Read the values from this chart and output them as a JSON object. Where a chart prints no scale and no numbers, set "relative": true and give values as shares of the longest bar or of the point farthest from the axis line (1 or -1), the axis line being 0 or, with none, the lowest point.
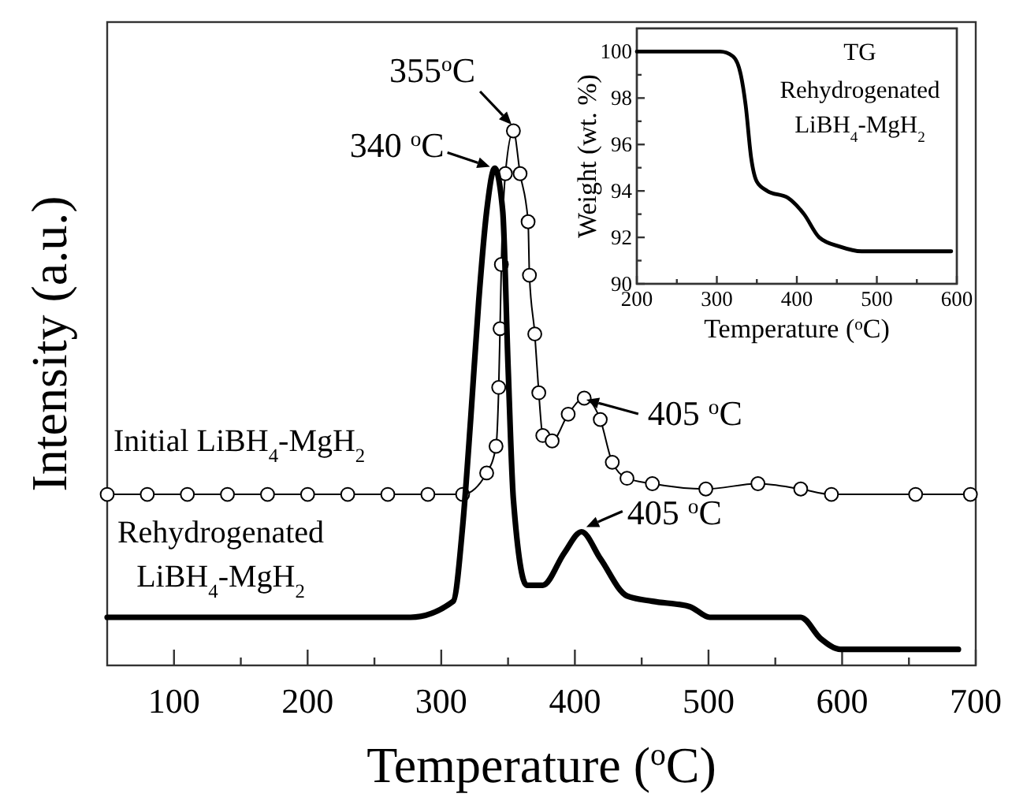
{
  "chart_data": [
    {
      "type": "line",
      "relative": true,
      "xlabel": "Temperature ($^{o}$C)",
      "ylabel": "Intensity (a.u.)",
      "xlim": [
        50,
        700
      ],
      "xticks": [
        100,
        {
          "value": 150,
          "label": null
        },
        200,
        {
          "value": 250,
          "label": null
        },
        300,
        {
          "value": 350,
          "label": null
        },
        400,
        {
          "value": 450,
          "label": null
        },
        500,
        {
          "value": 550,
          "label": null
        },
        600,
        {
          "value": 650,
          "label": null
        },
        700
      ],
      "annotations": [
        {
          "text": "355$^{o}$C",
          "x": 355,
          "y": 1.0
        },
        {
          "text": "340 $^{o}$C",
          "x": 340,
          "y": 0.93
        },
        {
          "text": "405 $^{o}$C",
          "x": 405,
          "y": 0.5
        },
        {
          "text": "405 $^{o}$C",
          "x": 405,
          "y": 0.25
        }
      ],
      "series": [
        {
          "name": "Initial LiBH$_{4}$-MgH$_{2}$",
          "color": "#000000",
          "marker": "circle",
          "x": [
            50,
            80,
            110,
            140,
            170,
            200,
            230,
            260,
            290,
            316,
            334,
            341,
            343,
            344,
            345,
            348,
            354,
            359,
            365,
            366,
            370,
            373,
            376,
            383,
            395,
            407,
            419,
            428,
            439,
            458,
            498,
            537,
            569,
            592,
            655,
            696
          ],
          "values": [
            0.32,
            0.32,
            0.32,
            0.32,
            0.32,
            0.32,
            0.32,
            0.32,
            0.32,
            0.32,
            0.36,
            0.41,
            0.52,
            0.63,
            0.75,
            0.92,
            1.0,
            0.92,
            0.83,
            0.73,
            0.62,
            0.51,
            0.43,
            0.42,
            0.47,
            0.5,
            0.46,
            0.38,
            0.35,
            0.34,
            0.33,
            0.34,
            0.33,
            0.32,
            0.32,
            0.32
          ]
        },
        {
          "name": "Rehydrogenated LiBH$_{4}$-MgH$_{2}$",
          "color": "#000000",
          "marker": "none",
          "x": [
            50,
            277,
            309,
            316,
            322,
            328,
            334,
            340,
            346,
            350,
            354,
            364,
            376,
            392,
            405,
            419,
            439,
            458,
            486,
            501,
            569,
            584,
            599,
            687
          ],
          "values": [
            0.09,
            0.09,
            0.12,
            0.26,
            0.46,
            0.68,
            0.85,
            0.93,
            0.85,
            0.56,
            0.31,
            0.15,
            0.15,
            0.21,
            0.25,
            0.2,
            0.13,
            0.12,
            0.11,
            0.09,
            0.09,
            0.05,
            0.03,
            0.03
          ]
        }
      ]
    },
    {
      "type": "line",
      "xlabel": "Temperature ($^{o}$C)",
      "ylabel": "Weight (wt. %)",
      "xlim": [
        200,
        600
      ],
      "ylim": [
        90,
        101
      ],
      "xticks": [
        200,
        {
          "value": 250,
          "label": null
        },
        300,
        {
          "value": 350,
          "label": null
        },
        400,
        {
          "value": 450,
          "label": null
        },
        500,
        {
          "value": 550,
          "label": null
        },
        600
      ],
      "yticks": [
        90,
        {
          "value": 91,
          "label": null
        },
        92,
        {
          "value": 93,
          "label": null
        },
        94,
        {
          "value": 95,
          "label": null
        },
        96,
        {
          "value": 97,
          "label": null
        },
        98,
        {
          "value": 99,
          "label": null
        },
        100
      ],
      "annotations": [
        "TG",
        "Rehydrogenated LiBH$_{4}$-MgH$_{2}$"
      ],
      "series": [
        {
          "color": "#000000",
          "x": [
            200,
            304,
            320,
            330,
            336,
            343,
            350,
            363,
            389,
            409,
            428,
            454,
            481,
            593
          ],
          "values": [
            100,
            100,
            99.8,
            99,
            97.7,
            95.4,
            94.4,
            94,
            93.7,
            93,
            92,
            91.6,
            91.4,
            91.4
          ]
        }
      ]
    }
  ]
}
